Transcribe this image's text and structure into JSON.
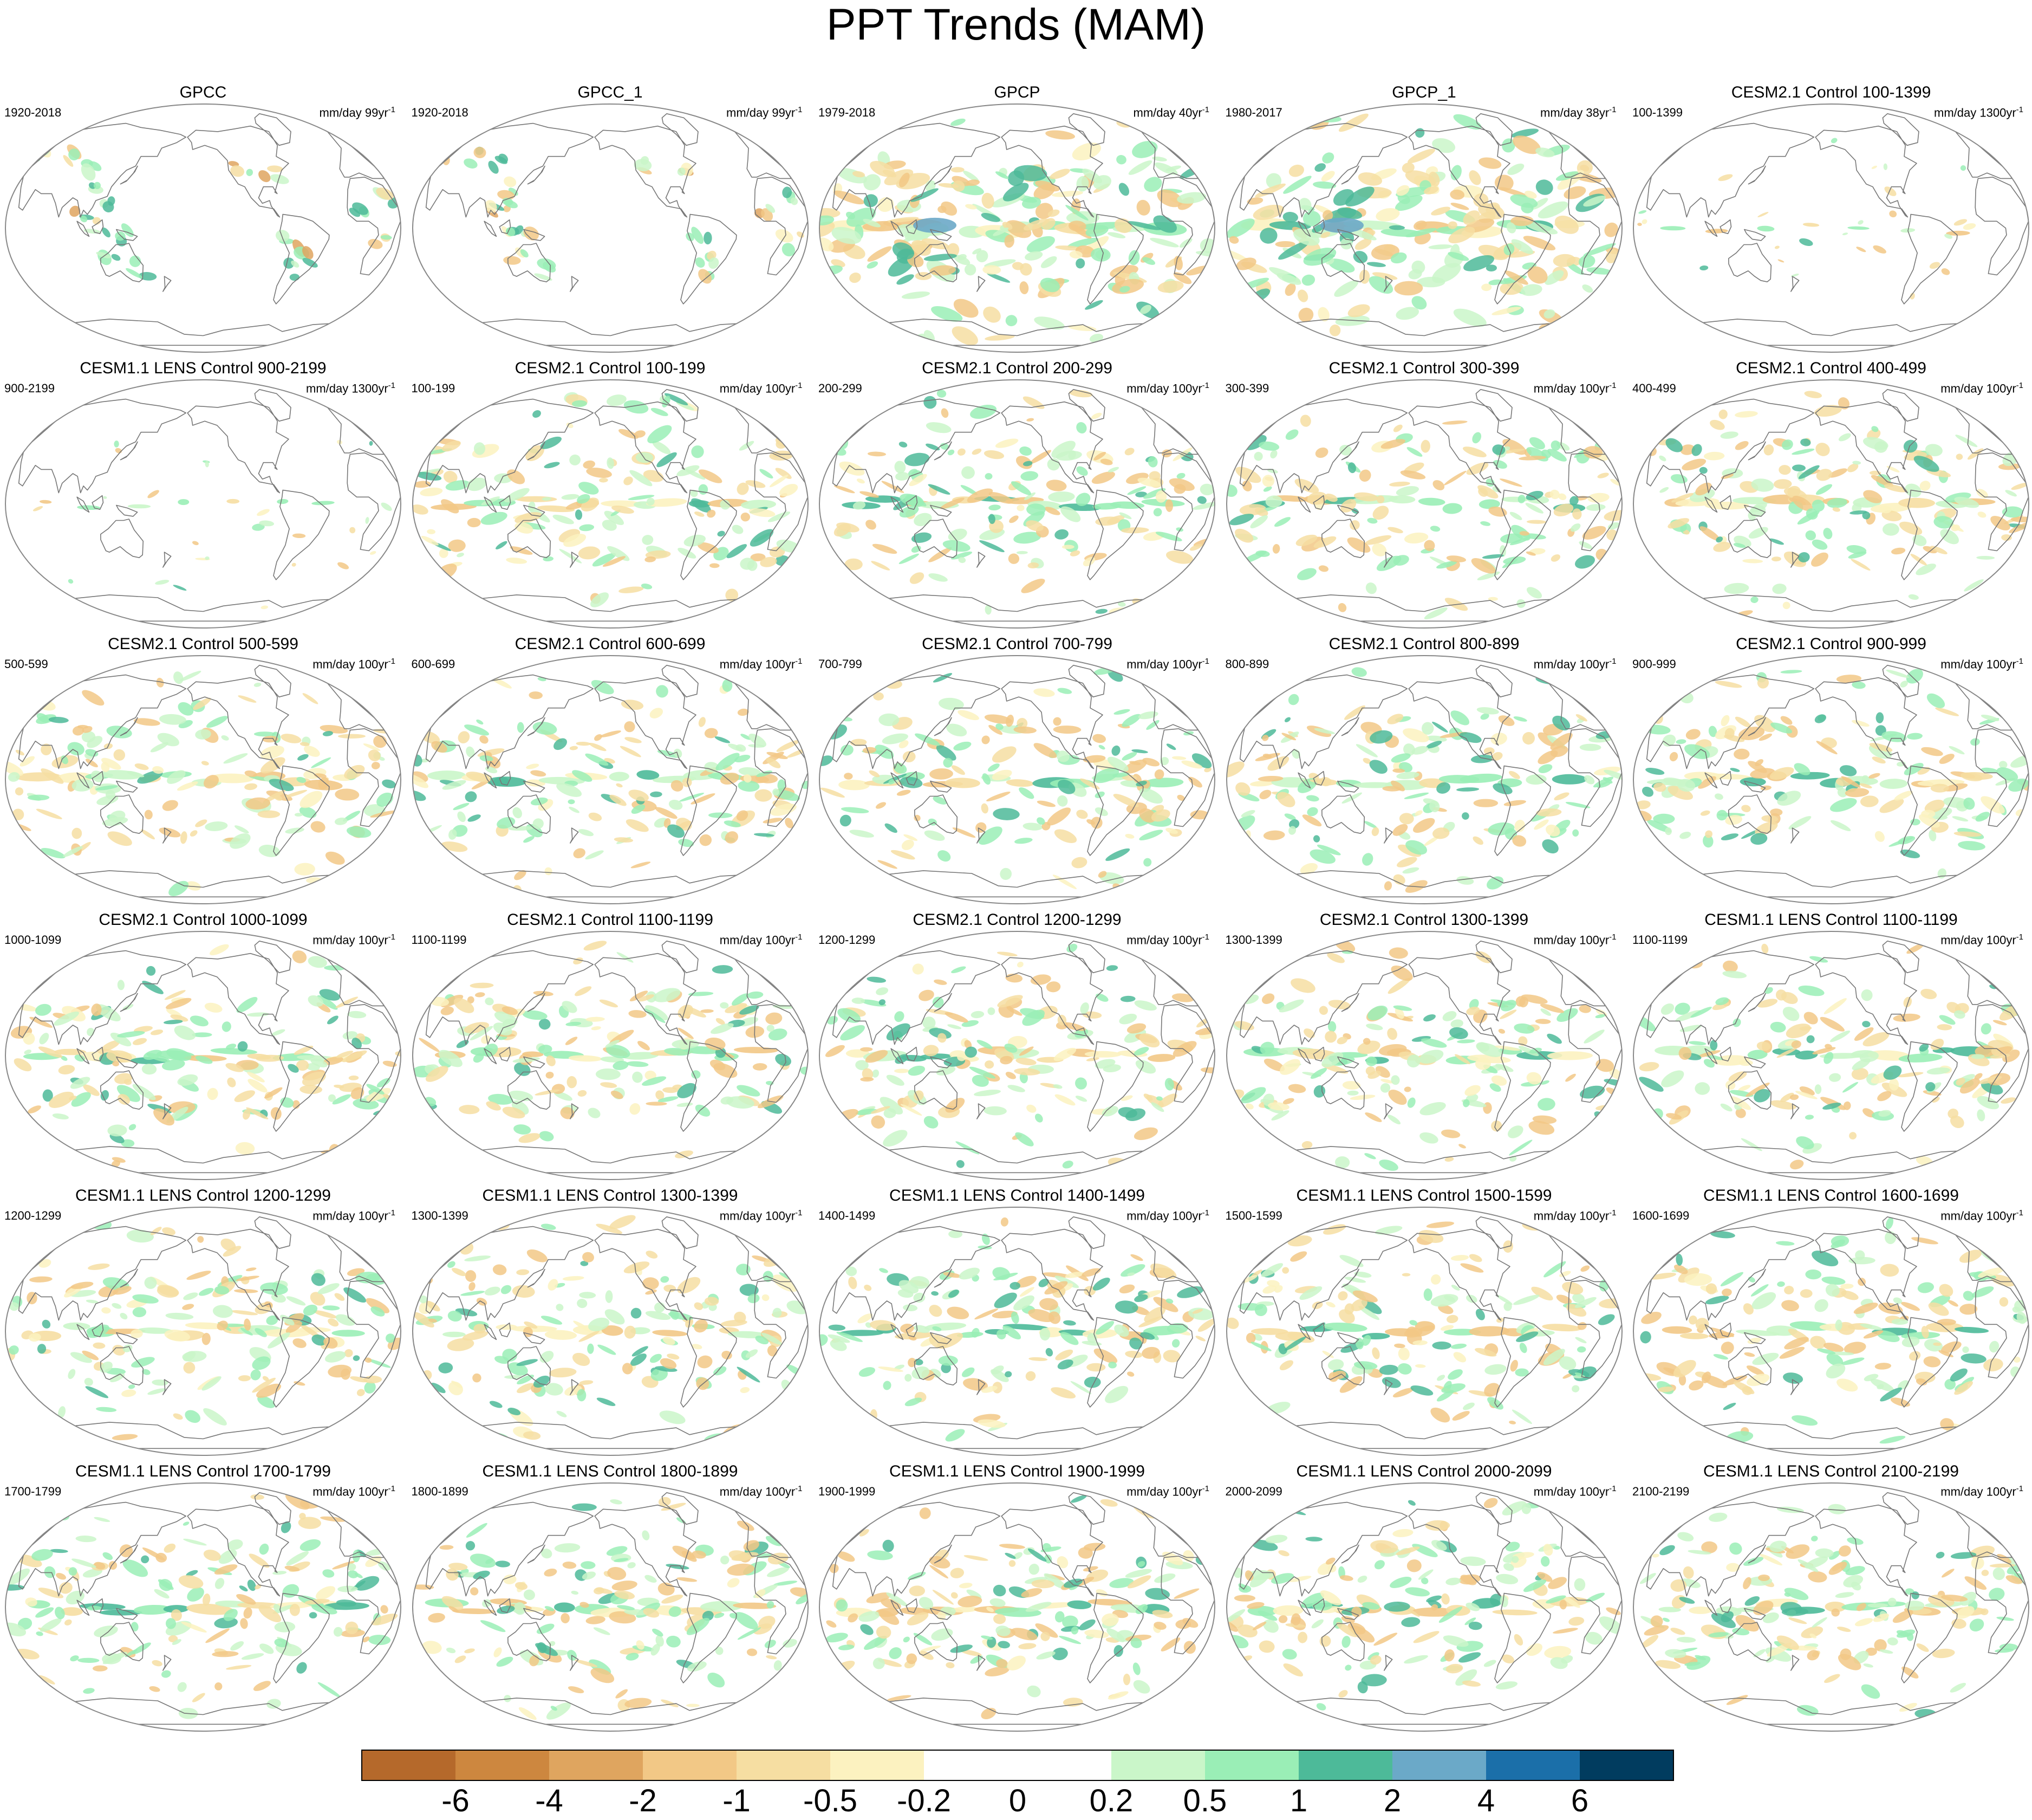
{
  "title": "PPT Trends (MAM)",
  "map_style": {
    "land_line": "#777777",
    "frame_line": "#888888"
  },
  "panels": [
    {
      "title": "GPCC",
      "period": "1920-2018",
      "units": "mm/day 99yr",
      "units_exp": "-1",
      "pattern": "obs_land"
    },
    {
      "title": "GPCC_1",
      "period": "1920-2018",
      "units": "mm/day 99yr",
      "units_exp": "-1",
      "pattern": "obs_land"
    },
    {
      "title": "GPCP",
      "period": "1979-2018",
      "units": "mm/day 40yr",
      "units_exp": "-1",
      "pattern": "obs_global"
    },
    {
      "title": "GPCP_1",
      "period": "1980-2017",
      "units": "mm/day 38yr",
      "units_exp": "-1",
      "pattern": "obs_global"
    },
    {
      "title": "CESM2.1 Control 100-1399",
      "period": "100-1399",
      "units": "mm/day 1300yr",
      "units_exp": "-1",
      "pattern": "long"
    },
    {
      "title": "CESM1.1 LENS Control 900-2199",
      "period": "900-2199",
      "units": "mm/day 1300yr",
      "units_exp": "-1",
      "pattern": "long"
    },
    {
      "title": "CESM2.1 Control 100-199",
      "period": "100-199",
      "units": "mm/day 100yr",
      "units_exp": "-1",
      "pattern": "cent"
    },
    {
      "title": "CESM2.1 Control 200-299",
      "period": "200-299",
      "units": "mm/day 100yr",
      "units_exp": "-1",
      "pattern": "cent"
    },
    {
      "title": "CESM2.1 Control 300-399",
      "period": "300-399",
      "units": "mm/day 100yr",
      "units_exp": "-1",
      "pattern": "cent"
    },
    {
      "title": "CESM2.1 Control 400-499",
      "period": "400-499",
      "units": "mm/day 100yr",
      "units_exp": "-1",
      "pattern": "cent"
    },
    {
      "title": "CESM2.1 Control 500-599",
      "period": "500-599",
      "units": "mm/day 100yr",
      "units_exp": "-1",
      "pattern": "cent"
    },
    {
      "title": "CESM2.1 Control 600-699",
      "period": "600-699",
      "units": "mm/day 100yr",
      "units_exp": "-1",
      "pattern": "cent"
    },
    {
      "title": "CESM2.1 Control 700-799",
      "period": "700-799",
      "units": "mm/day 100yr",
      "units_exp": "-1",
      "pattern": "cent"
    },
    {
      "title": "CESM2.1 Control 800-899",
      "period": "800-899",
      "units": "mm/day 100yr",
      "units_exp": "-1",
      "pattern": "cent"
    },
    {
      "title": "CESM2.1 Control 900-999",
      "period": "900-999",
      "units": "mm/day 100yr",
      "units_exp": "-1",
      "pattern": "cent"
    },
    {
      "title": "CESM2.1 Control 1000-1099",
      "period": "1000-1099",
      "units": "mm/day 100yr",
      "units_exp": "-1",
      "pattern": "cent"
    },
    {
      "title": "CESM2.1 Control 1100-1199",
      "period": "1100-1199",
      "units": "mm/day 100yr",
      "units_exp": "-1",
      "pattern": "cent"
    },
    {
      "title": "CESM2.1 Control 1200-1299",
      "period": "1200-1299",
      "units": "mm/day 100yr",
      "units_exp": "-1",
      "pattern": "cent"
    },
    {
      "title": "CESM2.1 Control 1300-1399",
      "period": "1300-1399",
      "units": "mm/day 100yr",
      "units_exp": "-1",
      "pattern": "cent"
    },
    {
      "title": "CESM1.1 LENS Control 1100-1199",
      "period": "1100-1199",
      "units": "mm/day 100yr",
      "units_exp": "-1",
      "pattern": "cent"
    },
    {
      "title": "CESM1.1 LENS Control 1200-1299",
      "period": "1200-1299",
      "units": "mm/day 100yr",
      "units_exp": "-1",
      "pattern": "cent"
    },
    {
      "title": "CESM1.1 LENS Control 1300-1399",
      "period": "1300-1399",
      "units": "mm/day 100yr",
      "units_exp": "-1",
      "pattern": "cent"
    },
    {
      "title": "CESM1.1 LENS Control 1400-1499",
      "period": "1400-1499",
      "units": "mm/day 100yr",
      "units_exp": "-1",
      "pattern": "cent"
    },
    {
      "title": "CESM1.1 LENS Control 1500-1599",
      "period": "1500-1599",
      "units": "mm/day 100yr",
      "units_exp": "-1",
      "pattern": "cent"
    },
    {
      "title": "CESM1.1 LENS Control 1600-1699",
      "period": "1600-1699",
      "units": "mm/day 100yr",
      "units_exp": "-1",
      "pattern": "cent"
    },
    {
      "title": "CESM1.1 LENS Control 1700-1799",
      "period": "1700-1799",
      "units": "mm/day 100yr",
      "units_exp": "-1",
      "pattern": "cent"
    },
    {
      "title": "CESM1.1 LENS Control 1800-1899",
      "period": "1800-1899",
      "units": "mm/day 100yr",
      "units_exp": "-1",
      "pattern": "cent"
    },
    {
      "title": "CESM1.1 LENS Control 1900-1999",
      "period": "1900-1999",
      "units": "mm/day 100yr",
      "units_exp": "-1",
      "pattern": "cent"
    },
    {
      "title": "CESM1.1 LENS Control 2000-2099",
      "period": "2000-2099",
      "units": "mm/day 100yr",
      "units_exp": "-1",
      "pattern": "cent"
    },
    {
      "title": "CESM1.1 LENS Control 2100-2199",
      "period": "2100-2199",
      "units": "mm/day 100yr",
      "units_exp": "-1",
      "pattern": "cent"
    }
  ],
  "colorbar": {
    "colors": [
      "#b5692b",
      "#cd873f",
      "#dfa55f",
      "#f2c886",
      "#f6dea2",
      "#fcf2c0",
      "#ffffff",
      "#ffffff",
      "#caf6c9",
      "#9aeeb6",
      "#4dba99",
      "#6ba9c8",
      "#1b6fa9",
      "#013c5f"
    ],
    "labels": [
      "-6",
      "-4",
      "-2",
      "-1",
      "-0.5",
      "-0.2",
      "0",
      "0.2",
      "0.5",
      "1",
      "2",
      "4",
      "6"
    ]
  }
}
